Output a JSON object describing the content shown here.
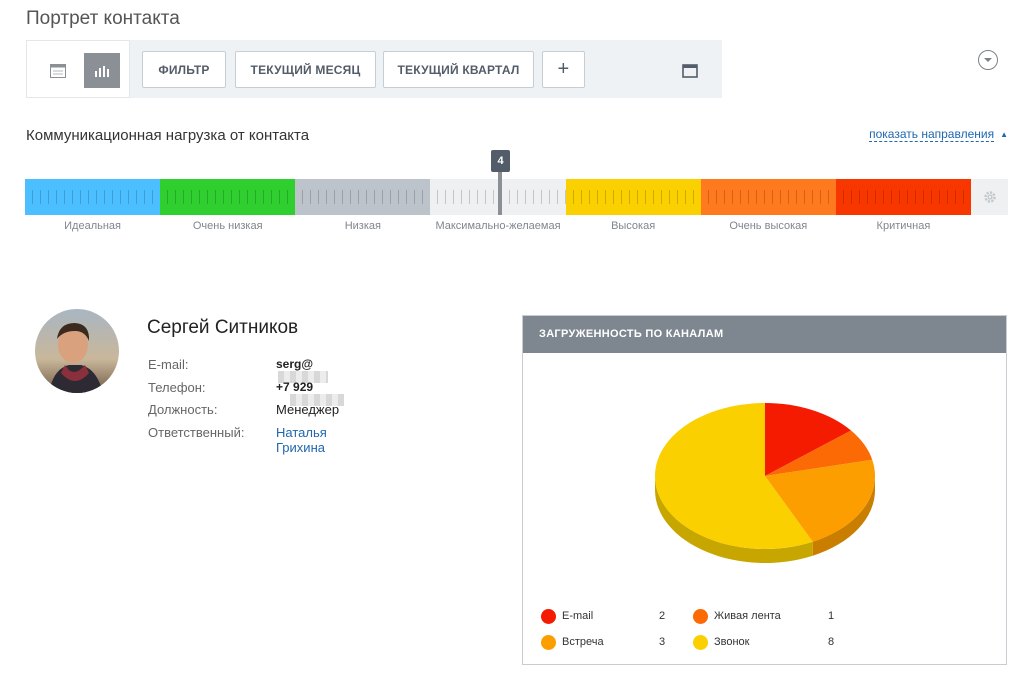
{
  "page": {
    "title": "Портрет контакта"
  },
  "toolbar": {
    "filter_label": "ФИЛЬТР",
    "month_label": "ТЕКУЩИЙ МЕСЯЦ",
    "quarter_label": "ТЕКУЩИЙ КВАРТАЛ",
    "add_label": "+"
  },
  "load": {
    "title": "Коммуникационная нагрузка от контакта",
    "show_directions": "показать направления",
    "marker_value": "4",
    "levels": [
      {
        "label": "Идеальная",
        "color": "#4bbfff"
      },
      {
        "label": "Очень низкая",
        "color": "#2fcf2f"
      },
      {
        "label": "Низкая",
        "color": "#bcc3ca"
      },
      {
        "label": "Максимально-желаемая",
        "color": "#eef0f2"
      },
      {
        "label": "Высокая",
        "color": "#fad000"
      },
      {
        "label": "Очень высокая",
        "color": "#ff7a1e"
      },
      {
        "label": "Критичная",
        "color": "#f83600"
      }
    ]
  },
  "contact": {
    "name": "Сергей Ситников",
    "email_label": "E-mail:",
    "email_value": "serg@",
    "phone_label": "Телефон:",
    "phone_value": "+7 929",
    "position_label": "Должность:",
    "position_value": "Менеджер",
    "responsible_label": "Ответственный:",
    "responsible_value": "Наталья Грихина"
  },
  "channels": {
    "title": "ЗАГРУЖЕННОСТЬ ПО КАНАЛАМ",
    "chart_data": {
      "type": "pie",
      "title": "ЗАГРУЖЕННОСТЬ ПО КАНАЛАМ",
      "categories": [
        "E-mail",
        "Живая лента",
        "Встреча",
        "Звонок"
      ],
      "values": [
        2,
        1,
        3,
        8
      ],
      "colors": [
        "#f41b00",
        "#fc6a06",
        "#fc9d00",
        "#fad000"
      ],
      "legend": "bottom-left"
    }
  }
}
